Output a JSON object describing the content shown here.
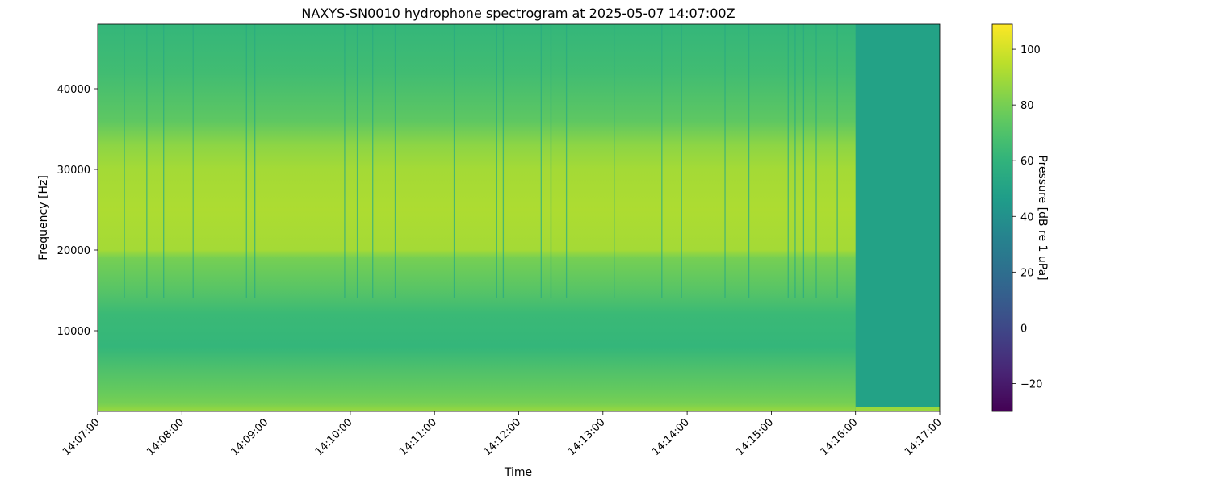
{
  "chart_data": {
    "type": "heatmap",
    "title": "NAXYS-SN0010 hydrophone spectrogram at 2025-05-07 14:07:00Z",
    "xlabel": "Time",
    "ylabel": "Frequency [Hz]",
    "colorbar_label": "Pressure [dB re 1 uPa]",
    "colormap": "viridis",
    "x_range": [
      "14:07:00",
      "14:17:00"
    ],
    "x_ticks": [
      "14:07:00",
      "14:08:00",
      "14:09:00",
      "14:10:00",
      "14:11:00",
      "14:12:00",
      "14:13:00",
      "14:14:00",
      "14:15:00",
      "14:16:00",
      "14:17:00"
    ],
    "ylim": [
      0,
      48000
    ],
    "y_ticks": [
      10000,
      20000,
      30000,
      40000
    ],
    "y_tick_labels": [
      "10000",
      "20000",
      "30000",
      "40000"
    ],
    "clim": [
      -30,
      109
    ],
    "colorbar_ticks": [
      -20,
      0,
      20,
      40,
      60,
      80,
      100
    ],
    "colorbar_tick_labels": [
      "−20",
      "0",
      "20",
      "40",
      "60",
      "80",
      "100"
    ],
    "grid": false,
    "signal_cutoff_time": "14:16:00",
    "frequency_profile_db": [
      {
        "freq_hz": 0,
        "level_db": 88
      },
      {
        "freq_hz": 1000,
        "level_db": 80
      },
      {
        "freq_hz": 2500,
        "level_db": 76
      },
      {
        "freq_hz": 5000,
        "level_db": 70
      },
      {
        "freq_hz": 8000,
        "level_db": 62
      },
      {
        "freq_hz": 12000,
        "level_db": 64
      },
      {
        "freq_hz": 15000,
        "level_db": 72
      },
      {
        "freq_hz": 19000,
        "level_db": 80
      },
      {
        "freq_hz": 20000,
        "level_db": 90
      },
      {
        "freq_hz": 25000,
        "level_db": 92
      },
      {
        "freq_hz": 30000,
        "level_db": 90
      },
      {
        "freq_hz": 33000,
        "level_db": 85
      },
      {
        "freq_hz": 36000,
        "level_db": 74
      },
      {
        "freq_hz": 42000,
        "level_db": 66
      },
      {
        "freq_hz": 48000,
        "level_db": 62
      }
    ],
    "after_cutoff_level_db": 50,
    "transient_times": [
      "14:07:19",
      "14:07:35",
      "14:07:47",
      "14:08:08",
      "14:08:46",
      "14:08:52",
      "14:09:56",
      "14:10:05",
      "14:10:16",
      "14:10:32",
      "14:11:14",
      "14:11:44",
      "14:11:49",
      "14:12:16",
      "14:12:23",
      "14:12:34",
      "14:13:08",
      "14:13:42",
      "14:13:56",
      "14:14:27",
      "14:14:44",
      "14:15:12",
      "14:15:17",
      "14:15:23",
      "14:15:32",
      "14:15:47"
    ]
  }
}
